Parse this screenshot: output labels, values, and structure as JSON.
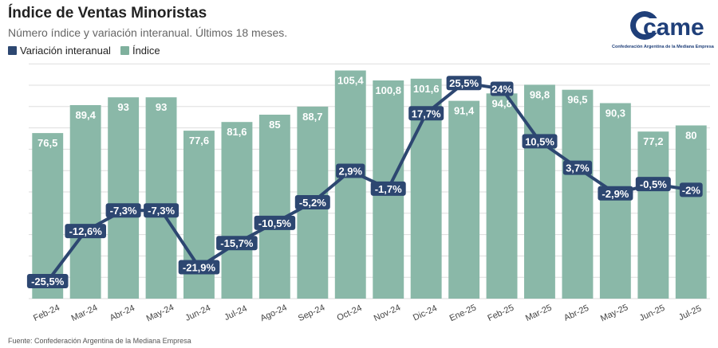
{
  "header": {
    "title": "Índice de Ventas Minoristas",
    "subtitle": "Número índice y variación interanual. Últimos 18 meses."
  },
  "logo": {
    "text": "came",
    "tagline": "Confederación Argentina de la Mediana Empresa"
  },
  "source": "Fuente: Confederación Argentina de la Mediana Empresa",
  "colors": {
    "bar": "#8ab8a8",
    "line": "#2d4771",
    "grid": "#dddddd",
    "text": "#222222"
  },
  "chart_data": {
    "type": "bar",
    "categories": [
      "Feb-24",
      "Mar-24",
      "Abr-24",
      "May-24",
      "Jun-24",
      "Jul-24",
      "Ago-24",
      "Sep-24",
      "Oct-24",
      "Nov-24",
      "Dic-24",
      "Ene-25",
      "Feb-25",
      "Mar-25",
      "Abr-25",
      "May-25",
      "Jun-25",
      "Jul-25"
    ],
    "series": [
      {
        "name": "Índice",
        "type": "bar",
        "values": [
          76.5,
          89.4,
          93,
          93,
          77.6,
          81.6,
          85,
          88.7,
          105.4,
          100.8,
          101.6,
          91.4,
          94.8,
          98.8,
          96.5,
          90.3,
          77.2,
          80
        ],
        "labels": [
          "76,5",
          "89,4",
          "93",
          "93",
          "77,6",
          "81,6",
          "85",
          "88,7",
          "105,4",
          "100,8",
          "101,6",
          "91,4",
          "94,8",
          "98,8",
          "96,5",
          "90,3",
          "77,2",
          "80"
        ]
      },
      {
        "name": "Variación interanual",
        "type": "line",
        "values": [
          -25.5,
          -12.6,
          -7.3,
          -7.3,
          -21.9,
          -15.7,
          -10.5,
          -5.2,
          2.9,
          -1.7,
          17.7,
          25.5,
          24,
          10.5,
          3.7,
          -2.9,
          -0.5,
          -2
        ],
        "labels": [
          "-25,5%",
          "-12,6%",
          "-7,3%",
          "-7,3%",
          "-21,9%",
          "-15,7%",
          "-10,5%",
          "-5,2%",
          "2,9%",
          "-1,7%",
          "17,7%",
          "25,5%",
          "24%",
          "10,5%",
          "3,7%",
          "-2,9%",
          "-0,5%",
          "-2%"
        ]
      }
    ],
    "legend": "top-left",
    "grid": true,
    "ylim_bar": [
      0,
      110
    ],
    "ylim_line": [
      -30,
      28
    ]
  }
}
